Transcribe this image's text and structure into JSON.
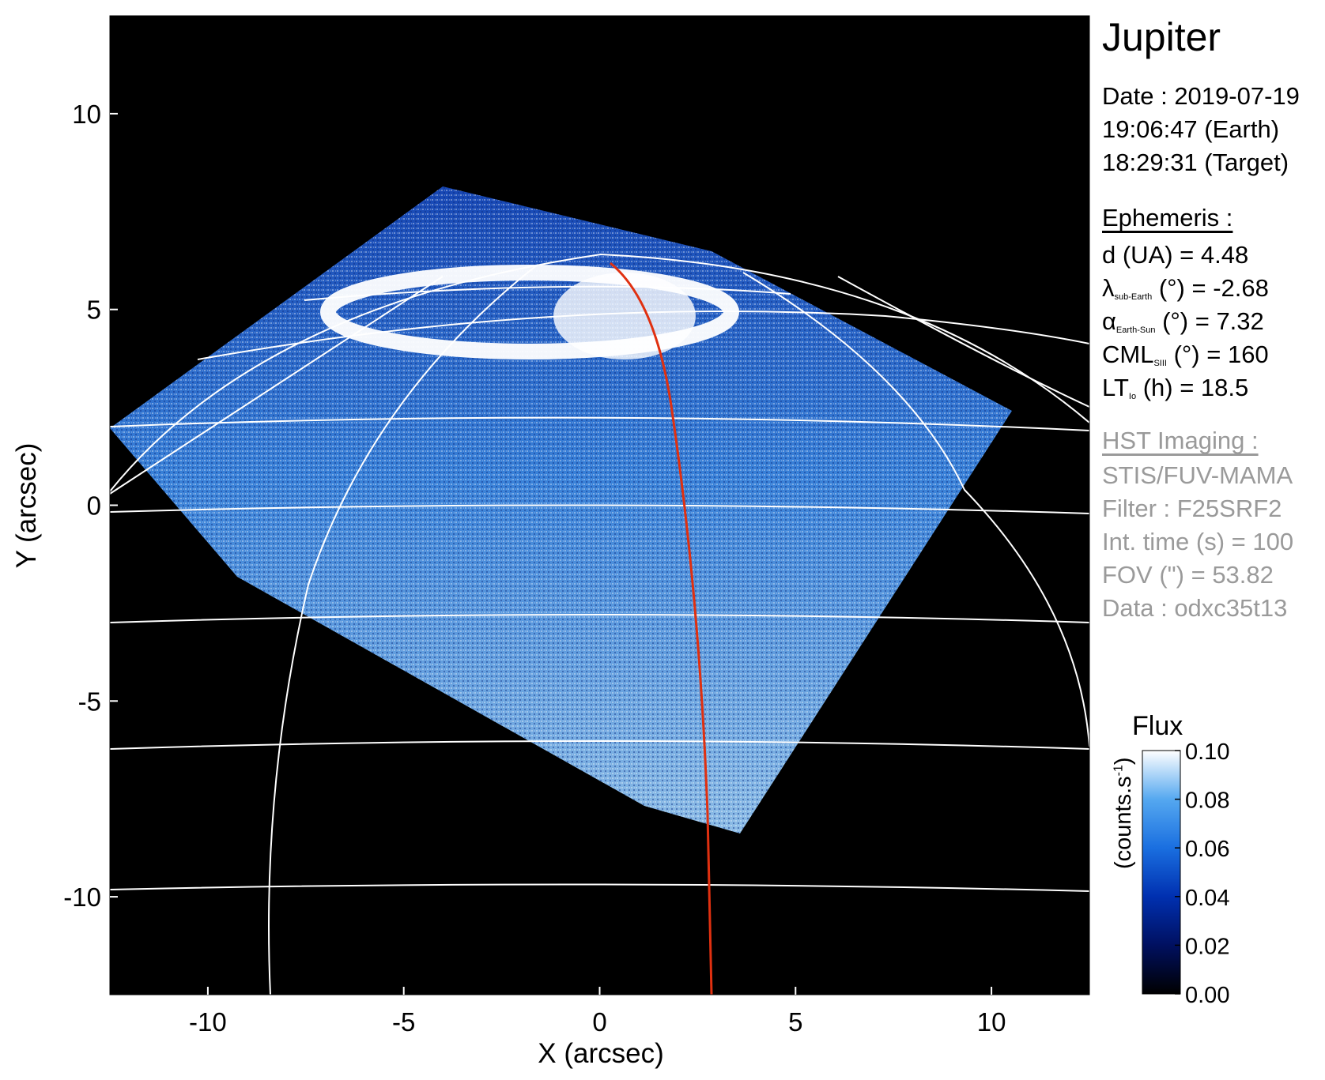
{
  "chart_data": {
    "type": "heatmap",
    "title": "",
    "xlabel": "X (arcsec)",
    "ylabel": "Y (arcsec)",
    "xlim": [
      -12.5,
      12.5
    ],
    "ylim": [
      -12.5,
      12.5
    ],
    "x_ticks": [
      -10,
      -5,
      0,
      5,
      10
    ],
    "y_ticks": [
      10,
      5,
      0,
      -5,
      -10
    ],
    "x_tick_labels": [
      "-10",
      "-5",
      "0",
      "5",
      "10"
    ],
    "y_tick_labels": [
      "10",
      "5",
      "0",
      "-5",
      "-10"
    ],
    "colorbar": {
      "label": "Flux",
      "unit_label": "(counts.s",
      "unit_exponent": "-1",
      "unit_close": ")",
      "range": [
        0.0,
        0.1
      ],
      "ticks": [
        "0.10",
        "0.08",
        "0.06",
        "0.04",
        "0.02",
        "0.00"
      ],
      "colors": [
        "#000000",
        "#001060",
        "#0030b0",
        "#1a6fe0",
        "#55a8f0",
        "#ffffff"
      ]
    },
    "planet_limb": true,
    "footprint_curve_color": "#e03010",
    "grid_color": "#ffffff"
  },
  "info": {
    "planet": "Jupiter",
    "date_line": "Date : 2019-07-19",
    "earth_time": "19:06:47 (Earth)",
    "target_time": "18:29:31 (Target)",
    "ephemeris_header": "Ephemeris :",
    "d_line": "d (UA)    = 4.48",
    "lambda_symbol": "λ",
    "lambda_sub": "sub-Earth",
    "lambda_value": " (°) = -2.68",
    "alpha_symbol": "α",
    "alpha_sub": "Earth-Sun",
    "alpha_value": " (°) = 7.32",
    "cml_symbol": "CML",
    "cml_sub": "SIII",
    "cml_value": " (°) = 160",
    "lt_symbol": "LT",
    "lt_sub": "Io",
    "lt_value": " (h) = 18.5",
    "hst_header": "HST Imaging :",
    "instrument": "STIS/FUV-MAMA",
    "filter": "Filter : F25SRF2",
    "int_time": "Int. time (s) = 100",
    "fov": "FOV (\") = 53.82",
    "data_id": "Data : odxc35t13"
  }
}
